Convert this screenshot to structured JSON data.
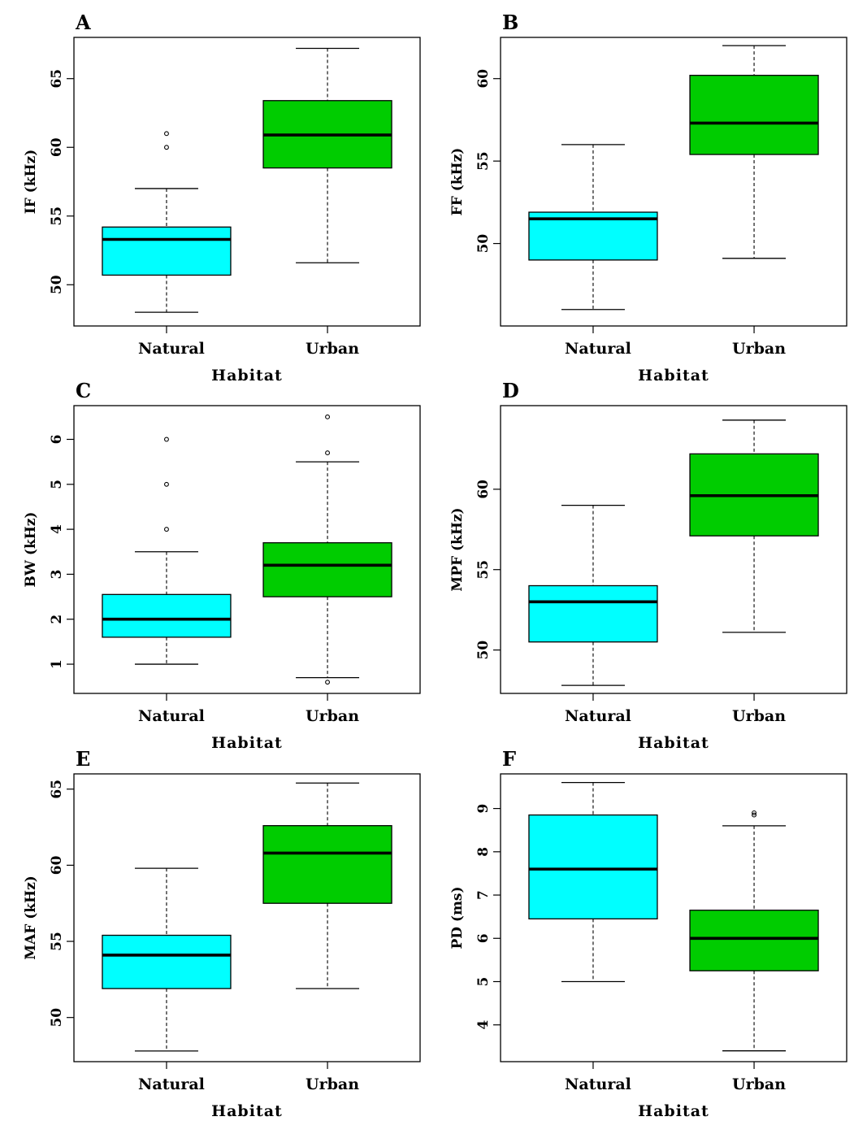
{
  "chart_data": [
    {
      "type": "box",
      "panel_label": "A",
      "xlabel": "Habitat",
      "ylabel": "IF (kHz)",
      "ylim": [
        47,
        68
      ],
      "yticks": [
        50,
        55,
        60,
        65
      ],
      "categories": [
        "Natural",
        "Urban"
      ],
      "colors": [
        "#00ffff",
        "#00cc00"
      ],
      "boxes": [
        {
          "min": 48,
          "q1": 50.7,
          "median": 53.3,
          "q3": 54.2,
          "max": 57,
          "outliers": [
            60,
            61
          ]
        },
        {
          "min": 51.6,
          "q1": 58.5,
          "median": 60.9,
          "q3": 63.4,
          "max": 67.2,
          "outliers": []
        }
      ]
    },
    {
      "type": "box",
      "panel_label": "B",
      "xlabel": "Habitat",
      "ylabel": "FF (kHz)",
      "ylim": [
        45,
        62.5
      ],
      "yticks": [
        50,
        55,
        60
      ],
      "categories": [
        "Natural",
        "Urban"
      ],
      "colors": [
        "#00ffff",
        "#00cc00"
      ],
      "boxes": [
        {
          "min": 46,
          "q1": 49,
          "median": 51.5,
          "q3": 51.9,
          "max": 56,
          "outliers": []
        },
        {
          "min": 49.1,
          "q1": 55.4,
          "median": 57.3,
          "q3": 60.2,
          "max": 62,
          "outliers": []
        }
      ]
    },
    {
      "type": "box",
      "panel_label": "C",
      "xlabel": "Habitat",
      "ylabel": "BW (kHz)",
      "ylim": [
        0.35,
        6.75
      ],
      "yticks": [
        1,
        2,
        3,
        4,
        5,
        6
      ],
      "categories": [
        "Natural",
        "Urban"
      ],
      "colors": [
        "#00ffff",
        "#00cc00"
      ],
      "boxes": [
        {
          "min": 1,
          "q1": 1.6,
          "median": 2,
          "q3": 2.55,
          "max": 3.5,
          "outliers": [
            4,
            5,
            6
          ]
        },
        {
          "min": 0.7,
          "q1": 2.5,
          "median": 3.2,
          "q3": 3.7,
          "max": 5.5,
          "outliers": [
            0.6,
            5.7,
            6.5
          ]
        }
      ]
    },
    {
      "type": "box",
      "panel_label": "D",
      "xlabel": "Habitat",
      "ylabel": "MPF (kHz)",
      "ylim": [
        47.3,
        65.2
      ],
      "yticks": [
        50,
        55,
        60
      ],
      "categories": [
        "Natural",
        "Urban"
      ],
      "colors": [
        "#00ffff",
        "#00cc00"
      ],
      "boxes": [
        {
          "min": 47.8,
          "q1": 50.5,
          "median": 53,
          "q3": 54,
          "max": 59,
          "outliers": []
        },
        {
          "min": 51.1,
          "q1": 57.1,
          "median": 59.6,
          "q3": 62.2,
          "max": 64.3,
          "outliers": []
        }
      ]
    },
    {
      "type": "box",
      "panel_label": "E",
      "xlabel": "Habitat",
      "ylabel": "MAF (kHz)",
      "ylim": [
        47.1,
        66
      ],
      "yticks": [
        50,
        55,
        60,
        65
      ],
      "categories": [
        "Natural",
        "Urban"
      ],
      "colors": [
        "#00ffff",
        "#00cc00"
      ],
      "boxes": [
        {
          "min": 47.8,
          "q1": 51.9,
          "median": 54.1,
          "q3": 55.4,
          "max": 59.8,
          "outliers": []
        },
        {
          "min": 51.9,
          "q1": 57.5,
          "median": 60.8,
          "q3": 62.6,
          "max": 65.4,
          "outliers": []
        }
      ]
    },
    {
      "type": "box",
      "panel_label": "F",
      "xlabel": "Habitat",
      "ylabel": "PD (ms)",
      "ylim": [
        3.15,
        9.8
      ],
      "yticks": [
        4,
        5,
        6,
        7,
        8,
        9
      ],
      "categories": [
        "Natural",
        "Urban"
      ],
      "colors": [
        "#00ffff",
        "#00cc00"
      ],
      "boxes": [
        {
          "min": 5,
          "q1": 6.45,
          "median": 7.6,
          "q3": 8.85,
          "max": 9.6,
          "outliers": []
        },
        {
          "min": 3.4,
          "q1": 5.25,
          "median": 6,
          "q3": 6.65,
          "max": 8.6,
          "outliers": [
            8.85,
            8.9
          ]
        }
      ]
    }
  ]
}
